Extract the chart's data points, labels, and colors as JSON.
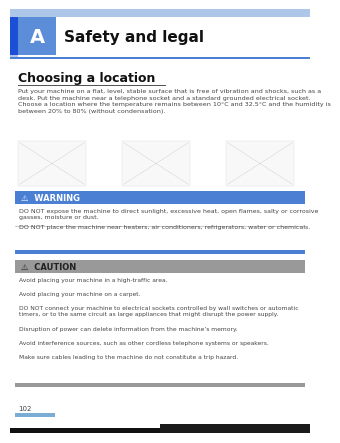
{
  "page_bg": "#ffffff",
  "header_accent_bg": "#aec6e8",
  "header_letter_bg": "#1a4fd6",
  "header_letter_light_bg": "#5b8dd9",
  "header_letter": "A",
  "header_title": "Safety and legal",
  "section_title": "Choosing a location",
  "intro_text": "Put your machine on a flat, level, stable surface that is free of vibration and shocks, such as a\ndesk. Put the machine near a telephone socket and a standard grounded electrical socket.\nChoose a location where the temperature remains between 10°C and 32.5°C and the humidity is\nbetween 20% to 80% (without condensation).",
  "warning_bg": "#4a7fd4",
  "warning_label": "⚠  WARNING",
  "warning_lines": [
    "DO NOT expose the machine to direct sunlight, excessive heat, open flames, salty or corrosive\ngasses, moisture or dust.",
    "DO NOT place the machine near heaters, air conditioners, refrigerators, water or chemicals."
  ],
  "warning_bottom_bar_bg": "#4a7fd4",
  "caution_bg": "#999999",
  "caution_label": "⚠  CAUTION",
  "caution_lines": [
    "Avoid placing your machine in a high-traffic area.",
    "Avoid placing your machine on a carpet.",
    "DO NOT connect your machine to electrical sockets controlled by wall switches or automatic\ntimers, or to the same circuit as large appliances that might disrupt the power supply.",
    "Disruption of power can delete information from the machine’s memory.",
    "Avoid interference sources, such as other cordless telephone systems or speakers.",
    "Make sure cables leading to the machine do not constitute a trip hazard."
  ],
  "caution_bottom_bar_bg": "#999999",
  "footer_text": "102",
  "footer_bar_bg": "#7badd4",
  "body_text_color": "#444444",
  "divider_color": "#cccccc",
  "bottom_bar_color": "#111111"
}
